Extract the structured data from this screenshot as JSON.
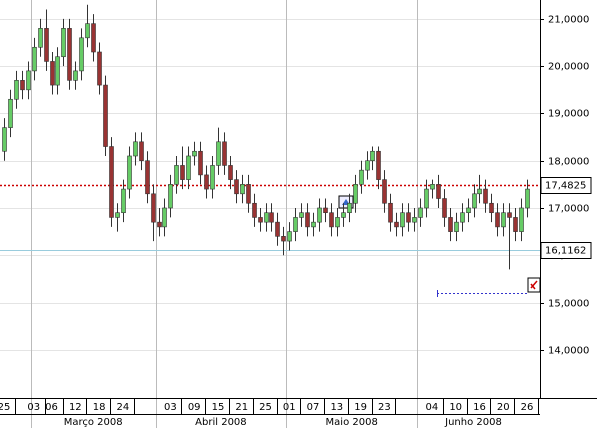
{
  "chart_data": {
    "type": "candlestick",
    "categories": [
      "25",
      null,
      null,
      null,
      null,
      "03",
      null,
      null,
      "06",
      null,
      null,
      null,
      "12",
      null,
      null,
      null,
      "18",
      null,
      null,
      null,
      "24",
      null,
      null,
      null,
      null,
      null,
      null,
      null,
      "03",
      null,
      null,
      null,
      "09",
      null,
      null,
      null,
      "15",
      null,
      null,
      null,
      "21",
      null,
      null,
      null,
      "25",
      null,
      null,
      null,
      "01",
      null,
      null,
      null,
      "07",
      null,
      null,
      null,
      "13",
      null,
      null,
      null,
      "19",
      null,
      null,
      null,
      "23",
      null,
      null,
      null,
      null,
      null,
      null,
      null,
      "04",
      null,
      null,
      null,
      "10",
      null,
      null,
      null,
      "16",
      null,
      null,
      null,
      "20",
      null,
      null,
      null,
      "26"
    ],
    "months": [
      "Março 2008",
      "Abril 2008",
      "Maio 2008",
      "Junho 2008"
    ],
    "open": [
      18.2,
      18.7,
      19.3,
      19.7,
      19.5,
      19.9,
      20.4,
      20.8,
      20.1,
      19.6,
      20.2,
      20.8,
      19.7,
      19.9,
      20.6,
      20.9,
      20.3,
      19.6,
      18.3,
      16.8,
      16.9,
      17.4,
      18.1,
      18.4,
      18.0,
      17.3,
      16.7,
      16.6,
      17.0,
      17.5,
      17.9,
      17.6,
      18.1,
      18.2,
      17.7,
      17.4,
      17.9,
      18.4,
      17.9,
      17.6,
      17.3,
      17.5,
      17.1,
      16.8,
      16.7,
      16.9,
      16.7,
      16.4,
      16.3,
      16.5,
      16.8,
      16.9,
      16.6,
      16.7,
      17.0,
      16.9,
      16.6,
      16.8,
      16.9,
      17.1,
      17.5,
      17.8,
      18.0,
      18.2,
      17.6,
      17.1,
      16.7,
      16.6,
      16.9,
      16.7,
      16.8,
      17.0,
      17.4,
      17.5,
      17.2,
      16.8,
      16.5,
      16.7,
      16.9,
      17.0,
      17.3,
      17.4,
      17.1,
      16.9,
      16.6,
      16.9,
      16.8,
      16.5,
      17.0
    ],
    "high": [
      18.9,
      19.5,
      19.9,
      19.9,
      20.1,
      20.6,
      21.0,
      21.2,
      20.3,
      20.4,
      21.0,
      21.0,
      20.1,
      20.8,
      21.3,
      21.1,
      20.5,
      19.8,
      18.5,
      17.1,
      17.6,
      18.3,
      18.6,
      18.6,
      18.2,
      17.5,
      17.0,
      17.2,
      17.7,
      18.1,
      18.3,
      18.3,
      18.4,
      18.4,
      17.9,
      18.1,
      18.7,
      18.6,
      18.1,
      17.8,
      17.7,
      17.7,
      17.3,
      17.0,
      17.1,
      17.1,
      16.9,
      16.6,
      16.7,
      17.0,
      17.1,
      17.1,
      16.9,
      17.2,
      17.2,
      17.1,
      17.0,
      17.1,
      17.3,
      17.7,
      18.0,
      18.2,
      18.3,
      18.3,
      17.8,
      17.3,
      16.9,
      17.1,
      17.1,
      17.0,
      17.2,
      17.6,
      17.6,
      17.7,
      17.4,
      17.0,
      16.9,
      17.1,
      17.2,
      17.5,
      17.7,
      17.6,
      17.3,
      17.1,
      17.1,
      17.1,
      17.0,
      17.2,
      17.6
    ],
    "low": [
      18.0,
      18.5,
      19.1,
      19.3,
      19.3,
      19.7,
      20.2,
      19.9,
      19.4,
      19.4,
      20.0,
      19.5,
      19.5,
      19.7,
      20.4,
      20.1,
      19.4,
      18.1,
      16.6,
      16.5,
      16.7,
      17.2,
      17.9,
      17.8,
      17.1,
      16.3,
      16.4,
      16.4,
      16.8,
      17.3,
      17.4,
      17.4,
      17.9,
      17.5,
      17.2,
      17.2,
      17.7,
      17.7,
      17.4,
      17.1,
      17.1,
      16.9,
      16.6,
      16.5,
      16.5,
      16.5,
      16.2,
      16.0,
      16.1,
      16.3,
      16.6,
      16.4,
      16.4,
      16.5,
      16.7,
      16.4,
      16.4,
      16.6,
      16.7,
      16.9,
      17.3,
      17.6,
      17.8,
      17.4,
      16.9,
      16.5,
      16.4,
      16.4,
      16.5,
      16.5,
      16.6,
      16.8,
      17.2,
      17.0,
      16.6,
      16.3,
      16.3,
      16.5,
      16.7,
      16.8,
      17.1,
      16.9,
      16.7,
      16.4,
      16.4,
      15.7,
      16.3,
      16.3,
      16.8
    ],
    "close": [
      18.7,
      19.3,
      19.7,
      19.5,
      19.9,
      20.4,
      20.8,
      20.1,
      19.6,
      20.2,
      20.8,
      19.7,
      19.9,
      20.6,
      20.9,
      20.3,
      19.6,
      18.3,
      16.8,
      16.9,
      17.4,
      18.1,
      18.4,
      18.0,
      17.3,
      16.7,
      16.6,
      17.0,
      17.5,
      17.9,
      17.6,
      18.1,
      18.2,
      17.7,
      17.4,
      17.9,
      18.4,
      17.9,
      17.6,
      17.3,
      17.5,
      17.1,
      16.8,
      16.7,
      16.9,
      16.7,
      16.4,
      16.3,
      16.5,
      16.8,
      16.9,
      16.6,
      16.7,
      17.0,
      16.9,
      16.6,
      16.8,
      16.9,
      17.1,
      17.5,
      17.8,
      18.0,
      18.2,
      17.6,
      17.1,
      16.7,
      16.6,
      16.9,
      16.7,
      16.8,
      17.0,
      17.4,
      17.5,
      17.2,
      16.8,
      16.5,
      16.7,
      16.9,
      17.0,
      17.3,
      17.4,
      17.1,
      16.9,
      16.6,
      16.9,
      16.8,
      16.5,
      17.0,
      17.4
    ],
    "up_color": "#66cc66",
    "down_color": "#993333",
    "ylim": [
      12.98,
      21.4
    ],
    "yticks": [
      {
        "value": 14,
        "label": "14,0000"
      },
      {
        "value": 15,
        "label": "15,0000"
      },
      {
        "value": 16,
        "label": "16,0000"
      },
      {
        "value": 17,
        "label": "17,0000"
      },
      {
        "value": 18,
        "label": "18,0000"
      },
      {
        "value": 19,
        "label": "19,0000"
      },
      {
        "value": 20,
        "label": "20,0000"
      },
      {
        "value": 21,
        "label": "21,0000"
      }
    ],
    "grid": true,
    "lines": [
      {
        "value": 17.4825,
        "label": "17,4825",
        "color": "#cc0000"
      },
      {
        "value": 16.1162,
        "label": "16,1162",
        "color": "#99ccdd"
      }
    ]
  }
}
